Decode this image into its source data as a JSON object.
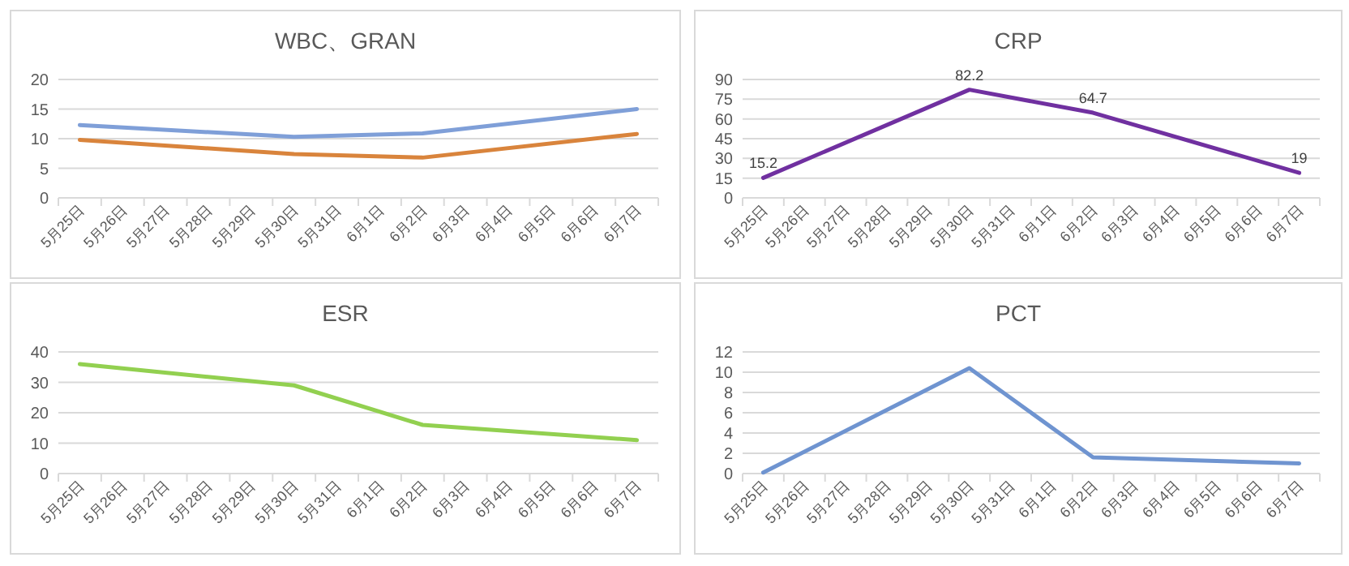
{
  "chart_data": [
    {
      "type": "line",
      "title": "WBC、GRAN",
      "categories": [
        "5月25日",
        "5月26日",
        "5月27日",
        "5月28日",
        "5月29日",
        "5月30日",
        "5月31日",
        "6月1日",
        "6月2日",
        "6月3日",
        "6月4日",
        "6月5日",
        "6月6日",
        "6月7日"
      ],
      "ylim": [
        0,
        20
      ],
      "yticks": [
        0,
        5,
        10,
        15,
        20
      ],
      "grid": "y",
      "series": [
        {
          "color": "#7f9fd8",
          "x": [
            "5月25日",
            "5月30日",
            "6月2日",
            "6月7日"
          ],
          "values": [
            12.3,
            10.3,
            10.9,
            15.0
          ]
        },
        {
          "color": "#d9843c",
          "x": [
            "5月25日",
            "5月30日",
            "6月2日",
            "6月7日"
          ],
          "values": [
            9.8,
            7.4,
            6.8,
            10.8
          ]
        }
      ]
    },
    {
      "type": "line",
      "title": "CRP",
      "categories": [
        "5月25日",
        "5月26日",
        "5月27日",
        "5月28日",
        "5月29日",
        "5月30日",
        "5月31日",
        "6月1日",
        "6月2日",
        "6月3日",
        "6月4日",
        "6月5日",
        "6月6日",
        "6月7日"
      ],
      "ylim": [
        0,
        90
      ],
      "yticks": [
        0,
        15,
        30,
        45,
        60,
        75,
        90
      ],
      "grid": "y",
      "data_labels": true,
      "series": [
        {
          "color": "#7030a0",
          "x": [
            "5月25日",
            "5月30日",
            "6月2日",
            "6月7日"
          ],
          "values": [
            15.2,
            82.2,
            64.7,
            19
          ]
        }
      ]
    },
    {
      "type": "line",
      "title": "ESR",
      "categories": [
        "5月25日",
        "5月26日",
        "5月27日",
        "5月28日",
        "5月29日",
        "5月30日",
        "5月31日",
        "6月1日",
        "6月2日",
        "6月3日",
        "6月4日",
        "6月5日",
        "6月6日",
        "6月7日"
      ],
      "ylim": [
        0,
        40
      ],
      "yticks": [
        0,
        10,
        20,
        30,
        40
      ],
      "grid": "y",
      "series": [
        {
          "color": "#92d050",
          "x": [
            "5月25日",
            "5月30日",
            "6月2日",
            "6月7日"
          ],
          "values": [
            36,
            29,
            16,
            11
          ]
        }
      ]
    },
    {
      "type": "line",
      "title": "PCT",
      "categories": [
        "5月25日",
        "5月26日",
        "5月27日",
        "5月28日",
        "5月29日",
        "5月30日",
        "5月31日",
        "6月1日",
        "6月2日",
        "6月3日",
        "6月4日",
        "6月5日",
        "6月6日",
        "6月7日"
      ],
      "ylim": [
        0,
        12
      ],
      "yticks": [
        0,
        2,
        4,
        6,
        8,
        10,
        12
      ],
      "grid": "y",
      "series": [
        {
          "color": "#6f94d0",
          "x": [
            "5月25日",
            "5月30日",
            "6月2日",
            "6月7日"
          ],
          "values": [
            0.1,
            10.4,
            1.6,
            1.0
          ]
        }
      ]
    }
  ]
}
